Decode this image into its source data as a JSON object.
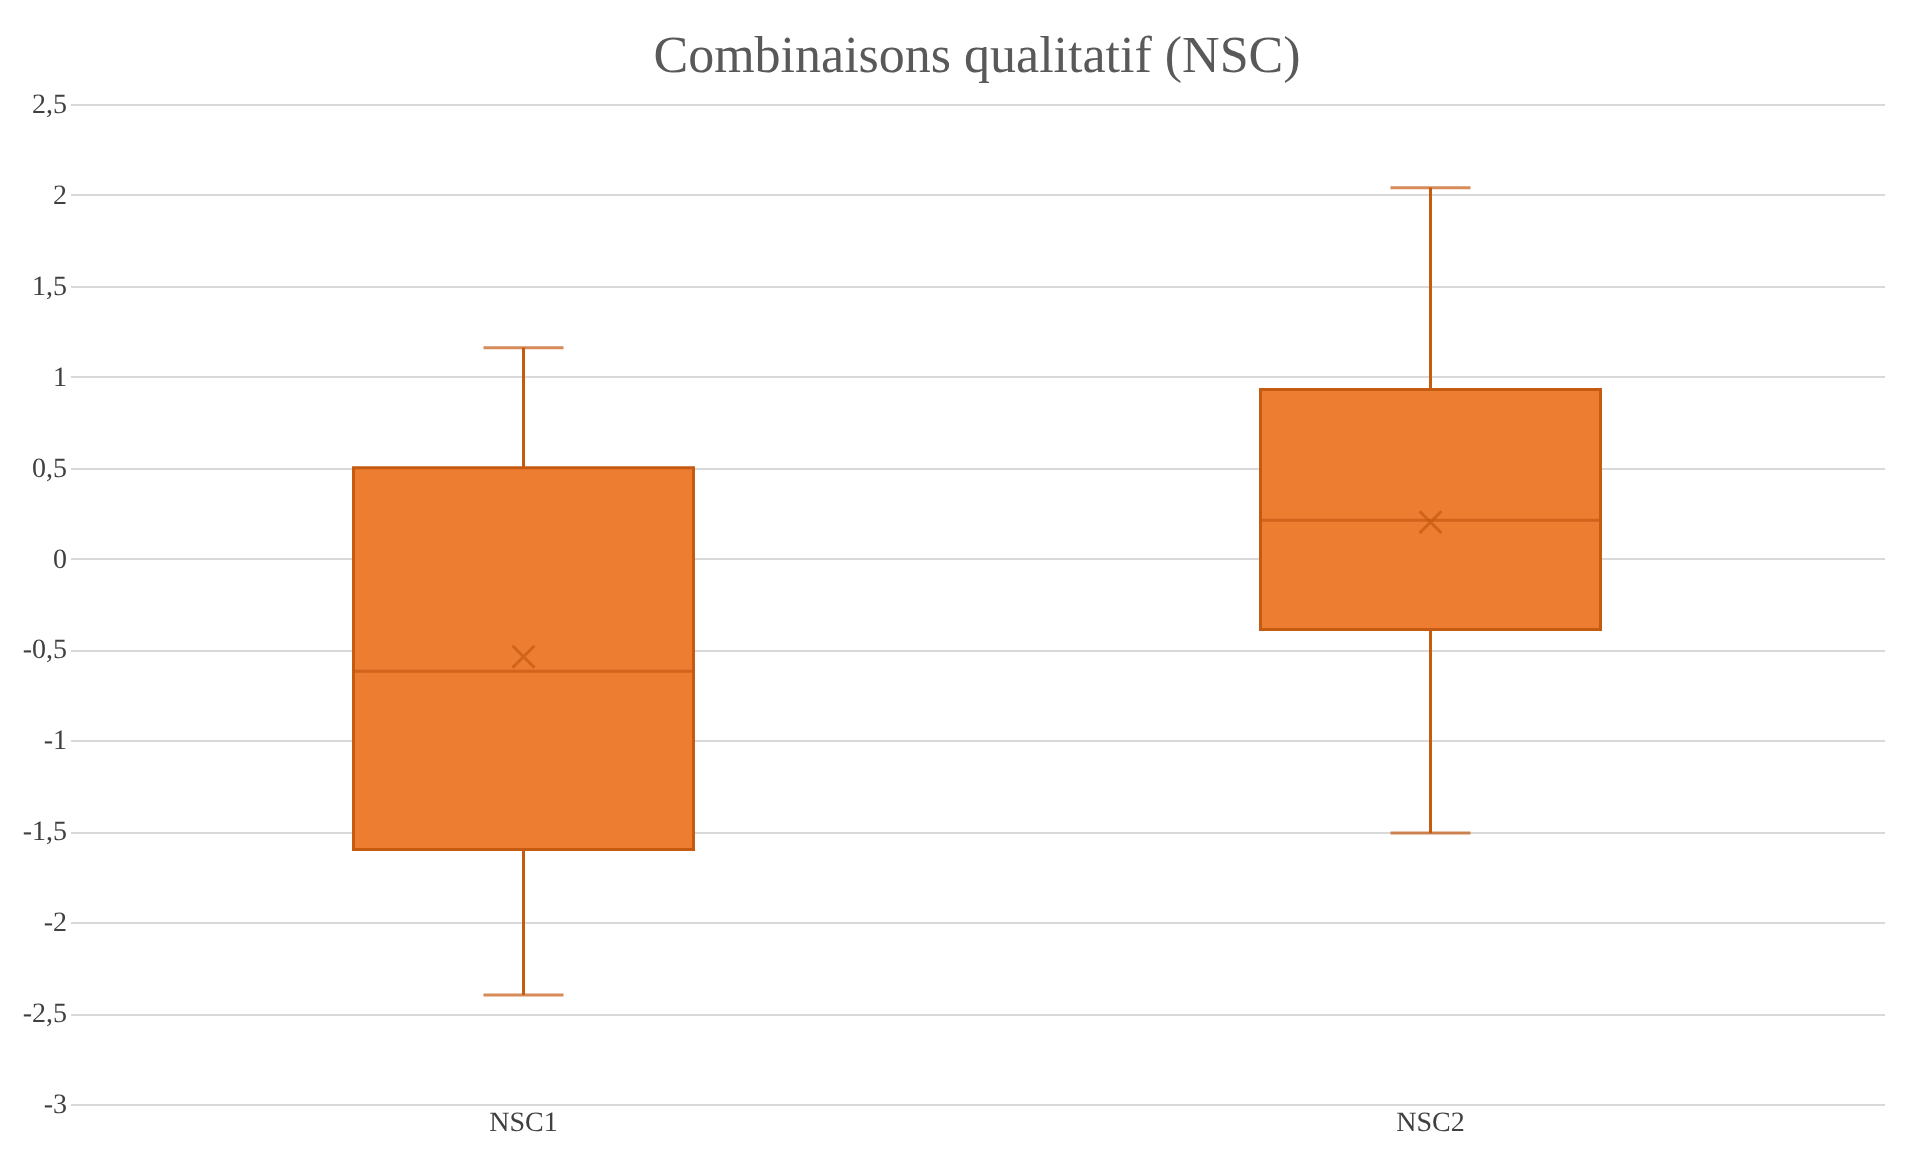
{
  "chart_data": {
    "type": "box",
    "title": "Combinaisons qualitatif (NSC)",
    "categories": [
      "NSC1",
      "NSC2"
    ],
    "boxes": [
      {
        "low": -2.4,
        "q1": -1.6,
        "median": -0.62,
        "q3": 0.5,
        "high": 1.16,
        "mean": -0.54
      },
      {
        "low": -1.51,
        "q1": -0.39,
        "median": 0.21,
        "q3": 0.93,
        "high": 2.04,
        "mean": 0.2
      }
    ],
    "color": "#ed7d31",
    "ylim": [
      -3,
      2.5
    ],
    "yticks": [
      {
        "value": -3,
        "label": "-3"
      },
      {
        "value": -2.5,
        "label": "-2,5"
      },
      {
        "value": -2,
        "label": "-2"
      },
      {
        "value": -1.5,
        "label": "-1,5"
      },
      {
        "value": -1,
        "label": "-1"
      },
      {
        "value": -0.5,
        "label": "-0,5"
      },
      {
        "value": 0,
        "label": "0"
      },
      {
        "value": 0.5,
        "label": "0,5"
      },
      {
        "value": 1,
        "label": "1"
      },
      {
        "value": 1.5,
        "label": "1,5"
      },
      {
        "value": 2,
        "label": "2"
      },
      {
        "value": 2.5,
        "label": "2,5"
      }
    ],
    "grid": "y",
    "marker": "cross"
  }
}
